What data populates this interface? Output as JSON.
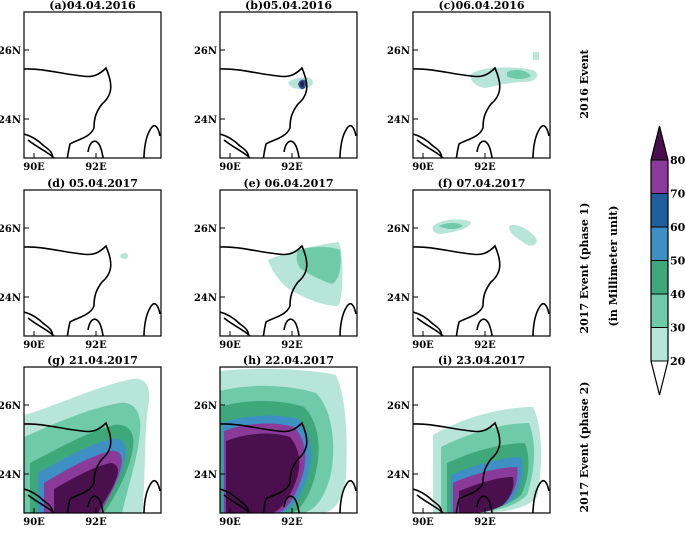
{
  "panels": [
    {
      "id": "a",
      "title": "(a)04.04.2016",
      "row": 0,
      "col": 0
    },
    {
      "id": "b",
      "title": "(b)05.04.2016",
      "row": 0,
      "col": 1
    },
    {
      "id": "c",
      "title": "(c)06.04.2016",
      "row": 0,
      "col": 2
    },
    {
      "id": "d",
      "title": "(d) 05.04.2017",
      "row": 1,
      "col": 0
    },
    {
      "id": "e",
      "title": "(e) 06.04.2017",
      "row": 1,
      "col": 1
    },
    {
      "id": "f",
      "title": "(f) 07.04.2017",
      "row": 1,
      "col": 2
    },
    {
      "id": "g",
      "title": "(g) 21.04.2017",
      "row": 2,
      "col": 0
    },
    {
      "id": "h",
      "title": "(h) 22.04.2017",
      "row": 2,
      "col": 1
    },
    {
      "id": "i",
      "title": "(i) 23.04.2017",
      "row": 2,
      "col": 2
    }
  ],
  "axes": {
    "lat_ticks": [
      "26N",
      "24N"
    ],
    "lon_ticks": [
      "90E",
      "92E"
    ]
  },
  "row_labels": [
    "2016 Event",
    "2017 Event (phase 1)",
    "2017 Event (phase 2)"
  ],
  "colorbar": {
    "unit_label": "(in Millimeter unit)",
    "levels": [
      20,
      30,
      40,
      50,
      60,
      70,
      80
    ],
    "colors": [
      "#ffffff",
      "#b7e5d8",
      "#6fcaa9",
      "#3fa87a",
      "#3d8fc4",
      "#1f5f9e",
      "#8a3b9a",
      "#4a0f4d"
    ]
  }
}
